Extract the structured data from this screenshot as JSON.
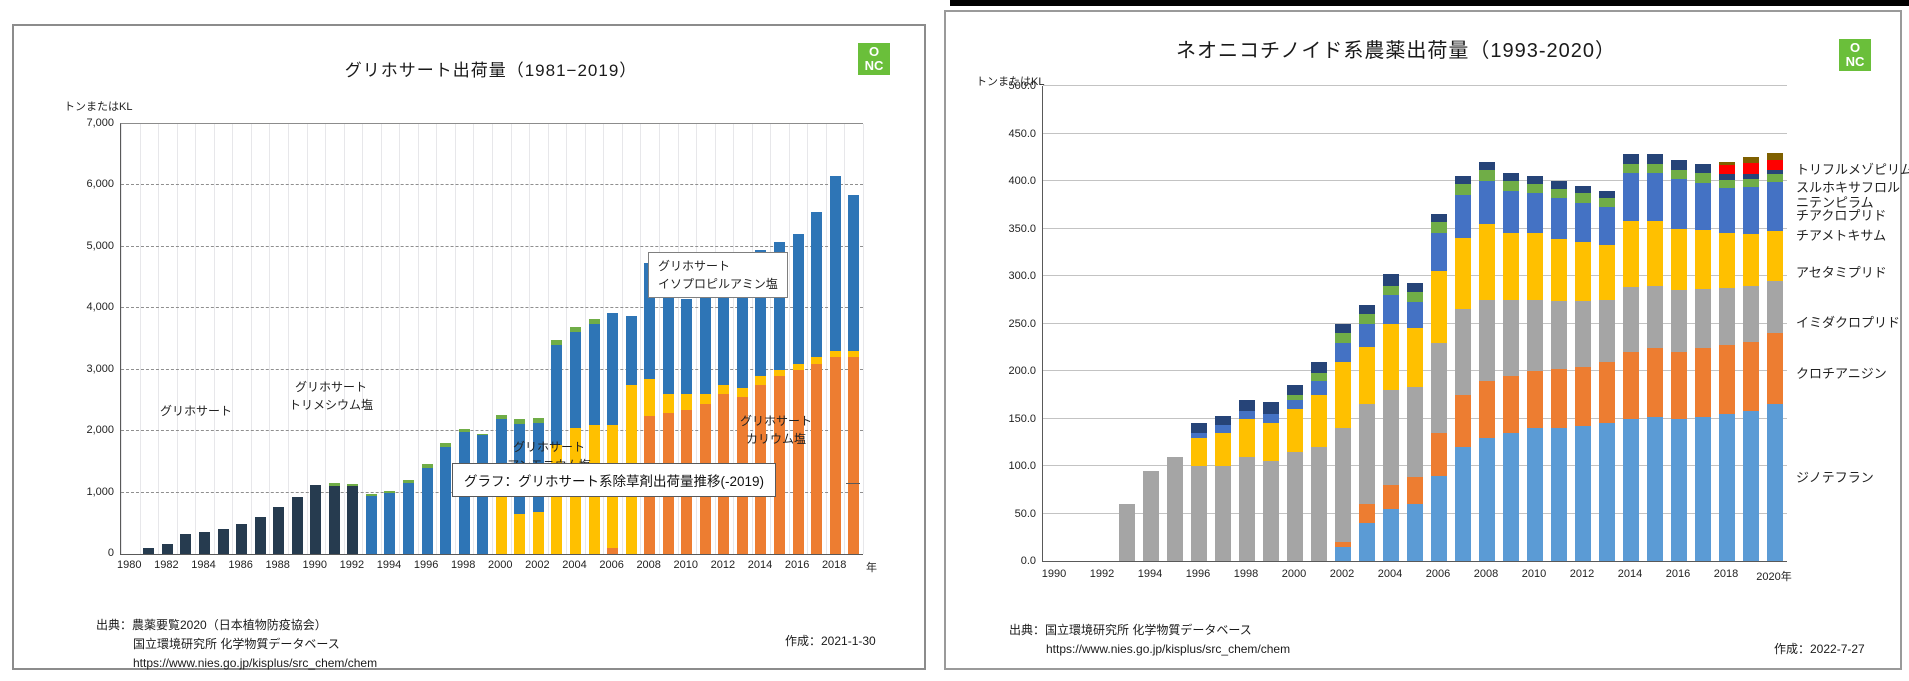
{
  "left_panel": {
    "title": "グリホサート出荷量（1981−2019）",
    "unit": "トンまたはKL",
    "logo_line1": "O",
    "logo_line2": "NC",
    "year_suffix": "年",
    "annotations": {
      "glyphosate": "グリホサート",
      "trimesium_l1": "グリホサート",
      "trimesium_l2": "トリメシウム塩",
      "ipa_l1": "グリホサート",
      "ipa_l2": "イソプロピルアミン塩",
      "potassium_l1": "グリホサート",
      "potassium_l2": "カリウム塩",
      "ammonium_l1": "グリホサート",
      "ammonium_l2": "アンモニウム塩"
    },
    "caption": "グラフ：グリホサート系除草剤出荷量推移(-2019)",
    "source_line1": "出典：農薬要覧2020（日本植物防疫協会）",
    "source_line2": "国立環境研究所 化学物質データベース",
    "source_line3": "https://www.nies.go.jp/kisplus/src_chem/chem",
    "created": "作成：2021-1-30"
  },
  "right_panel": {
    "title": "ネオニコチノイド系農薬出荷量（1993-2020）",
    "unit": "トンまたはKL",
    "logo_line1": "O",
    "logo_line2": "NC",
    "source_line1": "出典：国立環境研究所 化学物質データベース",
    "source_line2": "https://www.nies.go.jp/kisplus/src_chem/chem",
    "created": "作成：2022-7-27"
  },
  "chart_data": [
    {
      "type": "bar",
      "stacked": true,
      "title": "グリホサート出荷量（1981−2019）",
      "ylabel": "トンまたはKL",
      "ylim": [
        0,
        7000
      ],
      "y_step": 1000,
      "grid": "horizontal-dashed and vertical-light",
      "years": [
        1980,
        1981,
        1982,
        1983,
        1984,
        1985,
        1986,
        1987,
        1988,
        1989,
        1990,
        1991,
        1992,
        1993,
        1994,
        1995,
        1996,
        1997,
        1998,
        1999,
        2000,
        2001,
        2002,
        2003,
        2004,
        2005,
        2006,
        2007,
        2008,
        2009,
        2010,
        2011,
        2012,
        2013,
        2014,
        2015,
        2016,
        2017,
        2018,
        2019
      ],
      "y_tick_labels": [
        "0",
        "1,000",
        "2,000",
        "3,000",
        "4,000",
        "5,000",
        "6,000",
        "7,000"
      ],
      "x_tick_labels": [
        "1980",
        "1982",
        "1984",
        "1986",
        "1988",
        "1990",
        "1992",
        "1994",
        "1996",
        "1998",
        "2000",
        "2002",
        "2004",
        "2006",
        "2008",
        "2010",
        "2012",
        "2014",
        "2016",
        "2018"
      ],
      "series": [
        {
          "name": "グリホサートカリウム塩",
          "color": "#ED7D31",
          "values": [
            0,
            0,
            0,
            0,
            0,
            0,
            0,
            0,
            0,
            0,
            0,
            0,
            0,
            0,
            0,
            0,
            0,
            0,
            0,
            0,
            0,
            0,
            0,
            0,
            0,
            0,
            100,
            0,
            2250,
            2300,
            2350,
            2450,
            2600,
            2550,
            2750,
            2900,
            3000,
            3100,
            3200,
            3200
          ]
        },
        {
          "name": "グリホサートアンモニウム塩",
          "color": "#FFC000",
          "values": [
            0,
            0,
            0,
            0,
            0,
            0,
            0,
            0,
            0,
            0,
            0,
            0,
            0,
            0,
            0,
            0,
            0,
            0,
            0,
            0,
            1450,
            650,
            680,
            1780,
            2050,
            2100,
            2000,
            2750,
            600,
            300,
            250,
            150,
            150,
            150,
            150,
            100,
            100,
            100,
            100,
            100
          ]
        },
        {
          "name": "グリホサート",
          "color": "#263B4F",
          "values": [
            0,
            100,
            160,
            330,
            360,
            400,
            490,
            610,
            770,
            930,
            1130,
            1110,
            1100,
            0,
            0,
            0,
            0,
            0,
            0,
            0,
            0,
            0,
            0,
            0,
            0,
            0,
            0,
            0,
            0,
            0,
            0,
            0,
            0,
            0,
            0,
            0,
            0,
            0,
            0,
            0
          ]
        },
        {
          "name": "グリホサートイソプロピルアミン塩",
          "color": "#2E75B6",
          "values": [
            0,
            0,
            0,
            0,
            0,
            0,
            0,
            0,
            0,
            0,
            0,
            0,
            0,
            950,
            990,
            1160,
            1400,
            1740,
            1980,
            1930,
            750,
            1460,
            1450,
            1620,
            1570,
            1640,
            1820,
            1120,
            1880,
            1790,
            1550,
            1570,
            1700,
            1700,
            2050,
            2080,
            2110,
            2370,
            2860,
            2540
          ]
        },
        {
          "name": "グリホサートトリメシウム塩",
          "color": "#70AD47",
          "values": [
            0,
            0,
            0,
            0,
            0,
            0,
            0,
            0,
            0,
            0,
            0,
            40,
            40,
            30,
            40,
            50,
            60,
            70,
            60,
            30,
            60,
            80,
            80,
            90,
            80,
            80,
            0,
            0,
            0,
            0,
            0,
            0,
            0,
            0,
            0,
            0,
            0,
            0,
            0,
            0
          ]
        }
      ]
    },
    {
      "type": "bar",
      "stacked": true,
      "title": "ネオニコチノイド系農薬出荷量（1993-2020）",
      "ylabel": "トンまたはKL",
      "ylim": [
        0,
        500
      ],
      "y_step": 50,
      "grid": "horizontal-solid",
      "legend_position": "right",
      "years": [
        1990,
        1991,
        1992,
        1993,
        1994,
        1995,
        1996,
        1997,
        1998,
        1999,
        2000,
        2001,
        2002,
        2003,
        2004,
        2005,
        2006,
        2007,
        2008,
        2009,
        2010,
        2011,
        2012,
        2013,
        2014,
        2015,
        2016,
        2017,
        2018,
        2019,
        2020
      ],
      "y_tick_labels": [
        "0.0",
        "50.0",
        "100.0",
        "150.0",
        "200.0",
        "250.0",
        "300.0",
        "350.0",
        "400.0",
        "450.0",
        "500.0"
      ],
      "x_tick_labels": [
        "1990",
        "1992",
        "1994",
        "1996",
        "1998",
        "2000",
        "2002",
        "2004",
        "2006",
        "2008",
        "2010",
        "2012",
        "2014",
        "2016",
        "2018",
        "2020年"
      ],
      "legend_labels": [
        "トリフルメゾピリム",
        "スルホキサフロル",
        "ニテンピラム",
        "チアクロプリド",
        "チアメトキサム",
        "アセタミプリド",
        "イミダクロプリド",
        "クロチアニジン",
        "ジノテフラン"
      ],
      "series": [
        {
          "name": "ジノテフラン",
          "color": "#5B9BD5",
          "values": [
            0,
            0,
            0,
            0,
            0,
            0,
            0,
            0,
            0,
            0,
            0,
            0,
            15,
            40,
            55,
            60,
            90,
            120,
            130,
            135,
            140,
            140,
            142,
            145,
            150,
            152,
            150,
            152,
            155,
            158,
            165
          ]
        },
        {
          "name": "クロチアニジン",
          "color": "#ED7D31",
          "values": [
            0,
            0,
            0,
            0,
            0,
            0,
            0,
            0,
            0,
            0,
            0,
            0,
            5,
            20,
            25,
            28,
            45,
            55,
            60,
            60,
            60,
            62,
            62,
            65,
            70,
            72,
            70,
            72,
            72,
            73,
            75
          ]
        },
        {
          "name": "イミダクロプリド",
          "color": "#A5A5A5",
          "values": [
            0,
            0,
            0,
            60,
            95,
            110,
            100,
            100,
            110,
            105,
            115,
            120,
            120,
            105,
            100,
            95,
            95,
            90,
            85,
            80,
            75,
            72,
            70,
            65,
            68,
            66,
            65,
            62,
            60,
            58,
            55
          ]
        },
        {
          "name": "アセタミプリド",
          "color": "#FFC000",
          "values": [
            0,
            0,
            0,
            0,
            0,
            0,
            30,
            35,
            40,
            40,
            45,
            55,
            70,
            60,
            70,
            62,
            75,
            75,
            80,
            70,
            70,
            65,
            62,
            58,
            70,
            68,
            65,
            62,
            58,
            55,
            52
          ]
        },
        {
          "name": "チアメトキサム",
          "color": "#4472C4",
          "values": [
            0,
            0,
            0,
            0,
            0,
            0,
            5,
            8,
            8,
            10,
            10,
            15,
            20,
            25,
            30,
            28,
            40,
            45,
            45,
            45,
            42,
            43,
            41,
            40,
            50,
            50,
            52,
            50,
            48,
            50,
            52
          ]
        },
        {
          "name": "チアクロプリド",
          "color": "#70AD47",
          "values": [
            0,
            0,
            0,
            0,
            0,
            0,
            0,
            0,
            0,
            0,
            5,
            8,
            10,
            10,
            10,
            10,
            12,
            12,
            12,
            10,
            10,
            10,
            10,
            9,
            10,
            10,
            10,
            10,
            8,
            8,
            8
          ]
        },
        {
          "name": "ニテンピラム",
          "color": "#264478",
          "values": [
            0,
            0,
            0,
            0,
            0,
            0,
            10,
            10,
            12,
            12,
            10,
            12,
            10,
            10,
            12,
            10,
            8,
            8,
            8,
            8,
            8,
            8,
            8,
            8,
            10,
            10,
            10,
            10,
            6,
            5,
            5
          ]
        },
        {
          "name": "スルホキサフロル",
          "color": "#FF0000",
          "values": [
            0,
            0,
            0,
            0,
            0,
            0,
            0,
            0,
            0,
            0,
            0,
            0,
            0,
            0,
            0,
            0,
            0,
            0,
            0,
            0,
            0,
            0,
            0,
            0,
            0,
            0,
            0,
            0,
            10,
            12,
            10
          ]
        },
        {
          "name": "トリフルメゾピリム",
          "color": "#7F6000",
          "values": [
            0,
            0,
            0,
            0,
            0,
            0,
            0,
            0,
            0,
            0,
            0,
            0,
            0,
            0,
            0,
            0,
            0,
            0,
            0,
            0,
            0,
            0,
            0,
            0,
            0,
            0,
            0,
            0,
            3,
            6,
            8
          ]
        }
      ]
    }
  ]
}
